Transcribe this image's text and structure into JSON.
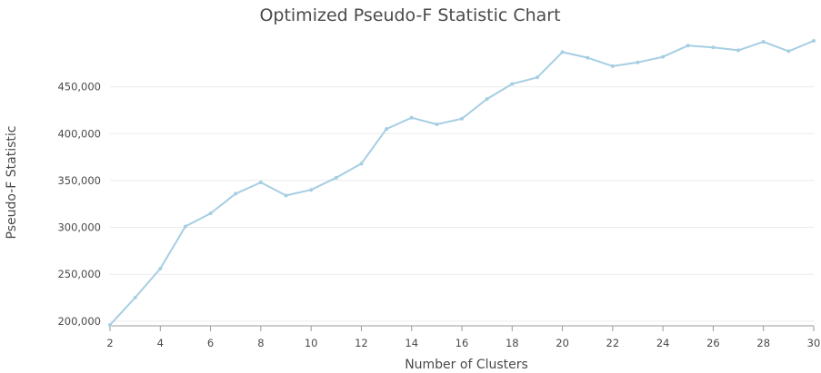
{
  "chart_data": {
    "type": "line",
    "title": "Optimized Pseudo-F Statistic Chart",
    "xlabel": "Number of Clusters",
    "ylabel": "Pseudo-F Statistic",
    "xlim": [
      2,
      30
    ],
    "ylim": [
      195000,
      500000
    ],
    "x_ticks": [
      2,
      4,
      6,
      8,
      10,
      12,
      14,
      16,
      18,
      20,
      22,
      24,
      26,
      28,
      30
    ],
    "x_tick_labels": [
      "2",
      "4",
      "6",
      "8",
      "10",
      "12",
      "14",
      "16",
      "18",
      "20",
      "22",
      "24",
      "26",
      "28",
      "30"
    ],
    "y_ticks": [
      200000,
      250000,
      300000,
      350000,
      400000,
      450000
    ],
    "y_tick_labels": [
      "200,000",
      "250,000",
      "300,000",
      "350,000",
      "400,000",
      "450,000"
    ],
    "grid": true,
    "color": "#a6cee3",
    "series": [
      {
        "x": [
          2,
          3,
          4,
          5,
          6,
          7,
          8,
          9,
          10,
          11,
          12,
          13,
          14,
          15,
          16,
          17,
          18,
          19,
          20,
          21,
          22,
          23,
          24,
          25,
          26,
          27,
          28,
          29,
          30
        ],
        "values": [
          196000,
          225000,
          256000,
          301000,
          315000,
          336000,
          348000,
          334000,
          340000,
          353000,
          368000,
          405000,
          417000,
          410000,
          416000,
          437000,
          453000,
          460000,
          487000,
          481000,
          472000,
          476000,
          482000,
          494000,
          492000,
          489000,
          498000,
          488000,
          499000
        ]
      }
    ]
  }
}
